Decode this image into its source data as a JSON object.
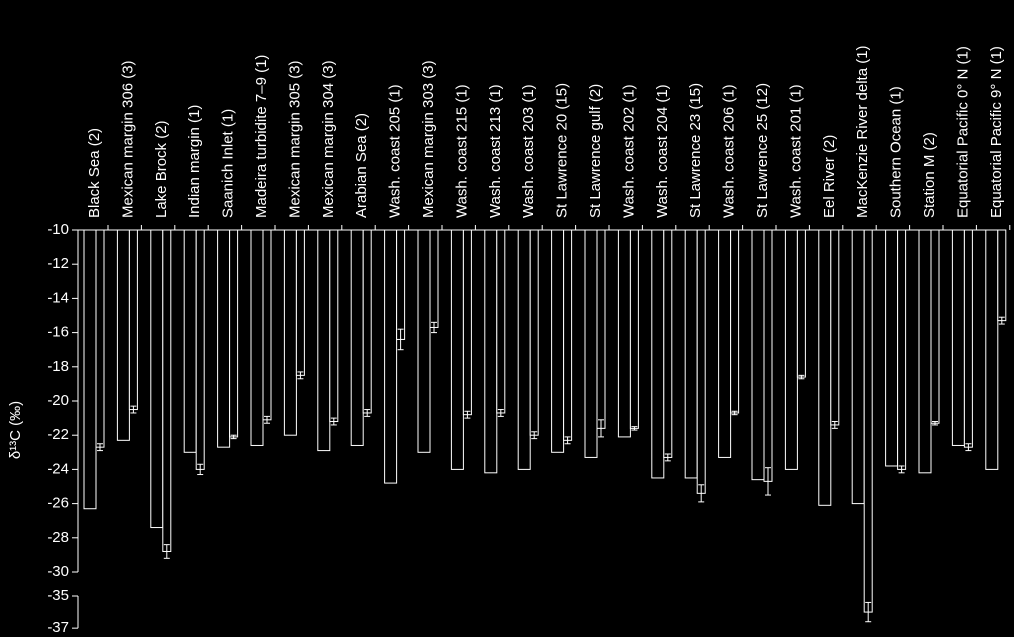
{
  "chart_data": {
    "type": "bar",
    "y_label": "δ¹³C (‰)",
    "categories": [
      "Black Sea (2)",
      "Mexican margin 306 (3)",
      "Lake Brock (2)",
      "Indian margin (1)",
      "Saanich Inlet (1)",
      "Madeira turbidite 7–9 (1)",
      "Mexican margin 305 (3)",
      "Mexican margin 304 (3)",
      "Arabian Sea (2)",
      "Wash. coast 205 (1)",
      "Mexican margin 303 (3)",
      "Wash. coast 215 (1)",
      "Wash. coast 213 (1)",
      "Wash. coast 203 (1)",
      "St Lawrence 20 (15)",
      "St Lawrence gulf (2)",
      "Wash. coast 202 (1)",
      "Wash. coast 204 (1)",
      "St Lawrence 23 (15)",
      "Wash. coast 206 (1)",
      "St Lawrence 25 (12)",
      "Wash. coast 201 (1)",
      "Eel River (2)",
      "MacKenzie River delta (1)",
      "Southern Ocean (1)",
      "Station M (2)",
      "Equatorial Pacific 0° N (1)",
      "Equatorial Pacific 9° N (1)"
    ],
    "series": [
      {
        "color": "#ffffff",
        "values": [
          -26.3,
          -22.3,
          -27.4,
          -23.0,
          -22.7,
          -22.6,
          -22.0,
          -22.9,
          -22.6,
          -24.8,
          -23.0,
          -24.0,
          -24.2,
          -24.0,
          -23.0,
          -23.3,
          -22.1,
          -24.5,
          -24.5,
          -23.3,
          -24.6,
          -24.0,
          -26.1,
          -26.0,
          -23.8,
          -24.2,
          -22.6,
          -24.0
        ]
      },
      {
        "color": "#ffffff",
        "values": [
          -22.7,
          -20.5,
          -28.8,
          -24.0,
          -22.1,
          -21.1,
          -18.5,
          -21.2,
          -20.7,
          -16.4,
          -15.7,
          -20.8,
          -20.7,
          -22.0,
          -22.3,
          -21.6,
          -21.6,
          -23.3,
          -25.4,
          -20.7,
          -24.7,
          -18.6,
          -21.4,
          -36.0,
          -24.0,
          -21.3,
          -22.7,
          -15.3
        ],
        "errors": [
          0.2,
          0.2,
          0.4,
          0.3,
          0.1,
          0.2,
          0.2,
          0.2,
          0.2,
          0.6,
          0.3,
          0.2,
          0.2,
          0.2,
          0.2,
          0.5,
          0.1,
          0.2,
          0.5,
          0.1,
          0.8,
          0.1,
          0.2,
          0.6,
          0.2,
          0.1,
          0.2,
          0.2
        ]
      }
    ],
    "ylim": [
      -10,
      -37
    ],
    "axis_break": [
      -30,
      -35
    ],
    "yticks": [
      -10,
      -12,
      -14,
      -16,
      -18,
      -20,
      -22,
      -24,
      -26,
      -28,
      -30,
      -35,
      -37
    ]
  }
}
